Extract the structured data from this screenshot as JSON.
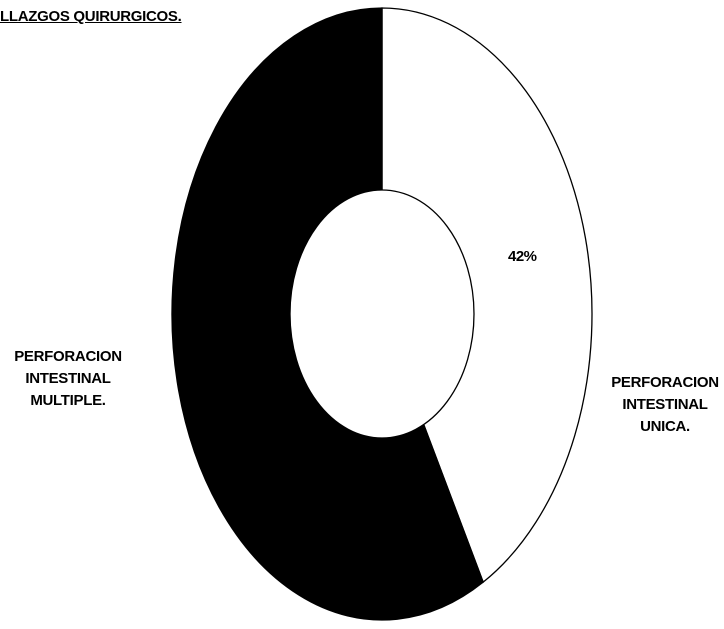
{
  "title": "LLAZGOS QUIRURGICOS.",
  "chart_data": {
    "type": "pie",
    "variant": "donut",
    "title": "LLAZGOS QUIRURGICOS.",
    "slices": [
      {
        "label_lines": [
          "PERFORACION",
          "INTESTINAL",
          "UNICA."
        ],
        "value": 42,
        "data_label": "42%",
        "color": "#ffffff"
      },
      {
        "label_lines": [
          "PERFORACION",
          "INTESTINAL",
          "MULTIPLE."
        ],
        "value": 58,
        "data_label": "",
        "color": "#000000"
      }
    ],
    "start_angle_deg": 0,
    "direction": "clockwise",
    "legend": "none"
  }
}
